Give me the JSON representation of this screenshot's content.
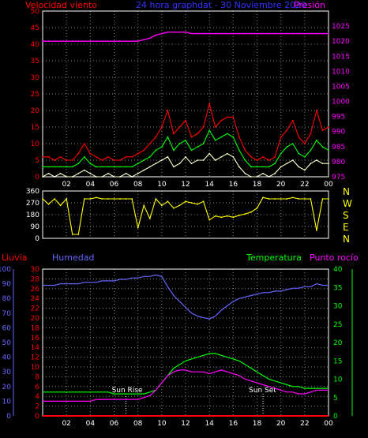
{
  "header": {
    "left_label": "Velocidad viento",
    "title": "24 hora graphdat - 30 Noviembre 2020",
    "right_label": "Presión"
  },
  "colors": {
    "wind_max": "#ff0000",
    "wind_avg": "#00ff00",
    "wind_min": "#ffffcc",
    "pressure": "#ff00ff",
    "direction": "#ffff00",
    "humidity": "#6666ff",
    "temperature": "#00ff00",
    "dewpoint": "#ff00ff",
    "rain": "#ff0000",
    "axis_left": "#ff0000",
    "axis_right": "#ff00ff",
    "axis_hum": "#6666ff",
    "axis_temp": "#00ff00",
    "axis_text": "#ffffff",
    "grid": "#808080",
    "frame": "#ffffff"
  },
  "x_ticks": [
    "02",
    "04",
    "06",
    "08",
    "10",
    "12",
    "14",
    "16",
    "18",
    "20",
    "22",
    "00"
  ],
  "chart_data": [
    {
      "type": "line",
      "name": "wind",
      "xlabel": "",
      "ylabel": "Velocidad viento",
      "ylim": [
        0,
        50
      ],
      "y_ticks": [
        "0",
        "5",
        "10",
        "15",
        "20",
        "25",
        "30",
        "35",
        "40",
        "45",
        "50"
      ],
      "y2label": "Presión",
      "y2lim": [
        975,
        1030
      ],
      "y2_ticks": [
        "975",
        "980",
        "985",
        "990",
        "995",
        "1000",
        "1005",
        "1010",
        "1015",
        "1020",
        "1025"
      ],
      "x": [
        0,
        0.5,
        1,
        1.5,
        2,
        2.5,
        3,
        3.5,
        4,
        4.5,
        5,
        5.5,
        6,
        6.5,
        7,
        7.5,
        8,
        8.5,
        9,
        9.5,
        10,
        10.5,
        11,
        11.5,
        12,
        12.5,
        13,
        13.5,
        14,
        14.5,
        15,
        15.5,
        16,
        16.5,
        17,
        17.5,
        18,
        18.5,
        19,
        19.5,
        20,
        20.5,
        21,
        21.5,
        22,
        22.5,
        23,
        23.5,
        24
      ],
      "series": [
        {
          "name": "max",
          "values": [
            6,
            6,
            5,
            6,
            5,
            5,
            7,
            10,
            7,
            6,
            5,
            6,
            5,
            5,
            6,
            6,
            7,
            8,
            10,
            12,
            15,
            20,
            13,
            15,
            17,
            12,
            13,
            15,
            22,
            15,
            17,
            18,
            18,
            12,
            8,
            6,
            5,
            6,
            5,
            6,
            12,
            14,
            17,
            12,
            10,
            13,
            20,
            14,
            15
          ]
        },
        {
          "name": "avg",
          "values": [
            3,
            3,
            3,
            3,
            3,
            3,
            4,
            6,
            4,
            3,
            3,
            3,
            3,
            3,
            3,
            3,
            4,
            5,
            6,
            8,
            9,
            12,
            8,
            10,
            11,
            8,
            9,
            10,
            14,
            11,
            12,
            13,
            12,
            8,
            5,
            3,
            3,
            3,
            3,
            4,
            7,
            9,
            10,
            7,
            6,
            8,
            11,
            9,
            8
          ]
        },
        {
          "name": "min",
          "values": [
            0,
            1,
            0,
            1,
            0,
            0,
            1,
            2,
            1,
            0,
            0,
            1,
            0,
            0,
            1,
            0,
            1,
            2,
            3,
            4,
            5,
            6,
            3,
            4,
            6,
            4,
            5,
            5,
            7,
            5,
            6,
            7,
            6,
            3,
            1,
            0,
            0,
            1,
            0,
            1,
            3,
            4,
            5,
            3,
            2,
            4,
            5,
            4,
            4
          ]
        },
        {
          "name": "pressure",
          "axis": "y2",
          "values": [
            1020,
            1020,
            1020,
            1020,
            1020,
            1020,
            1020,
            1020,
            1020,
            1020,
            1020,
            1020,
            1020,
            1020,
            1020,
            1020,
            1020,
            1020.5,
            1021,
            1022,
            1022.5,
            1023,
            1023,
            1023,
            1023,
            1022.5,
            1022.5,
            1022.5,
            1022.5,
            1022.5,
            1022.5,
            1022.5,
            1022.5,
            1022.5,
            1022.5,
            1022.5,
            1022.5,
            1022.5,
            1022.5,
            1022.5,
            1022.5,
            1022.5,
            1022.5,
            1022.5,
            1022.5,
            1022.5,
            1022.5,
            1022.5,
            1022.5
          ]
        }
      ]
    },
    {
      "type": "line",
      "name": "direction",
      "ylim": [
        0,
        360
      ],
      "y_ticks": [
        "0",
        "90",
        "180",
        "270",
        "360"
      ],
      "right_labels": [
        "N",
        "W",
        "S",
        "E",
        "N"
      ],
      "x": [
        0,
        0.5,
        1,
        1.5,
        2,
        2.5,
        3,
        3.5,
        4,
        4.5,
        5,
        5.5,
        6,
        6.5,
        7,
        7.5,
        8,
        8.5,
        9,
        9.5,
        10,
        10.5,
        11,
        11.5,
        12,
        12.5,
        13,
        13.5,
        14,
        14.5,
        15,
        15.5,
        16,
        16.5,
        17,
        17.5,
        18,
        18.5,
        19,
        19.5,
        20,
        20.5,
        21,
        21.5,
        22,
        22.5,
        23,
        23.5,
        24
      ],
      "series": [
        {
          "name": "direction",
          "values": [
            300,
            260,
            300,
            250,
            300,
            30,
            30,
            300,
            300,
            310,
            300,
            300,
            300,
            300,
            300,
            300,
            80,
            250,
            150,
            300,
            250,
            280,
            230,
            250,
            280,
            270,
            260,
            280,
            140,
            170,
            160,
            170,
            160,
            175,
            185,
            200,
            230,
            310,
            300,
            300,
            300,
            300,
            310,
            300,
            300,
            300,
            60,
            300,
            300
          ]
        }
      ]
    },
    {
      "type": "line",
      "name": "climate",
      "left_labels": {
        "rain": "Lluvia",
        "humidity": "Humedad",
        "temperature": "Temperatura",
        "dewpoint": "Punto rocío"
      },
      "ylim_rain": [
        0,
        30
      ],
      "rain_ticks": [
        "0",
        "2",
        "4",
        "6",
        "8",
        "10",
        "12",
        "14",
        "16",
        "18",
        "20",
        "22",
        "24",
        "26",
        "28",
        "30"
      ],
      "ylim_humidity": [
        0,
        100
      ],
      "humidity_ticks": [
        "0",
        "10",
        "20",
        "30",
        "40",
        "50",
        "60",
        "70",
        "80",
        "90",
        "100"
      ],
      "ylim_temp": [
        0,
        40
      ],
      "temp_ticks": [
        "0",
        "5",
        "10",
        "15",
        "20",
        "25",
        "30",
        "35",
        "40"
      ],
      "annotations": [
        {
          "label": "Sun Rise",
          "x": 7.0
        },
        {
          "label": "Sun Set",
          "x": 18.5
        }
      ],
      "x": [
        0,
        0.5,
        1,
        1.5,
        2,
        2.5,
        3,
        3.5,
        4,
        4.5,
        5,
        5.5,
        6,
        6.5,
        7,
        7.5,
        8,
        8.5,
        9,
        9.5,
        10,
        10.5,
        11,
        11.5,
        12,
        12.5,
        13,
        13.5,
        14,
        14.5,
        15,
        15.5,
        16,
        16.5,
        17,
        17.5,
        18,
        18.5,
        19,
        19.5,
        20,
        20.5,
        21,
        21.5,
        22,
        22.5,
        23,
        23.5,
        24
      ],
      "series": [
        {
          "name": "humidity",
          "values": [
            89,
            89,
            89,
            90,
            90,
            90,
            90,
            91,
            91,
            91,
            92,
            92,
            92,
            93,
            93,
            94,
            94,
            95,
            95,
            96,
            95,
            88,
            82,
            78,
            74,
            70,
            68,
            67,
            66,
            68,
            72,
            75,
            78,
            80,
            81,
            82,
            83,
            84,
            84,
            85,
            85,
            86,
            87,
            87,
            88,
            88,
            90,
            89,
            89
          ]
        },
        {
          "name": "temperature",
          "values": [
            6.5,
            6.5,
            6.5,
            6.5,
            6.5,
            6.5,
            6.5,
            6.5,
            6.5,
            6.5,
            6.5,
            6.5,
            6,
            6,
            6,
            6,
            6,
            6,
            6.5,
            7,
            9,
            11,
            13,
            14,
            15,
            15.5,
            16,
            16.5,
            17,
            17,
            16.5,
            16,
            15.5,
            15,
            14,
            13,
            12,
            11,
            10,
            9.5,
            9,
            8.5,
            8,
            8,
            7.5,
            7.5,
            7.5,
            7.5,
            7.5
          ]
        },
        {
          "name": "dewpoint",
          "values": [
            4,
            4,
            4,
            4,
            4,
            4,
            4,
            4,
            4,
            4.5,
            4.5,
            4.5,
            4.5,
            4.5,
            4.5,
            4.5,
            4.5,
            5,
            5.5,
            7,
            9,
            11,
            12,
            12.5,
            12.5,
            12,
            12,
            12,
            11.5,
            12,
            12.5,
            12,
            11.5,
            11,
            10,
            9.5,
            9,
            8.5,
            8,
            7.5,
            7,
            6.5,
            6.5,
            6,
            6,
            6.5,
            7,
            7,
            7
          ]
        },
        {
          "name": "rain",
          "values": [
            0,
            0,
            0,
            0,
            0,
            0,
            0,
            0,
            0,
            0,
            0,
            0,
            0,
            0,
            0,
            0,
            0,
            0,
            0,
            0,
            0,
            0,
            0,
            0,
            0,
            0,
            0,
            0,
            0,
            0,
            0,
            0,
            0,
            0,
            0,
            0,
            0,
            0,
            0,
            0,
            0,
            0,
            0,
            0,
            0,
            0,
            0,
            0,
            0
          ]
        }
      ]
    }
  ]
}
